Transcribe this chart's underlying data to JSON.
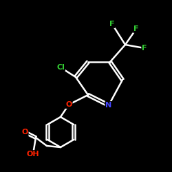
{
  "bg_color": "#000000",
  "bond_color": "#ffffff",
  "atom_colors": {
    "N": "#4444ff",
    "O": "#ff2200",
    "F": "#33cc33",
    "Cl": "#33cc33",
    "C": "#ffffff"
  },
  "figsize": [
    2.5,
    2.5
  ],
  "dpi": 100
}
